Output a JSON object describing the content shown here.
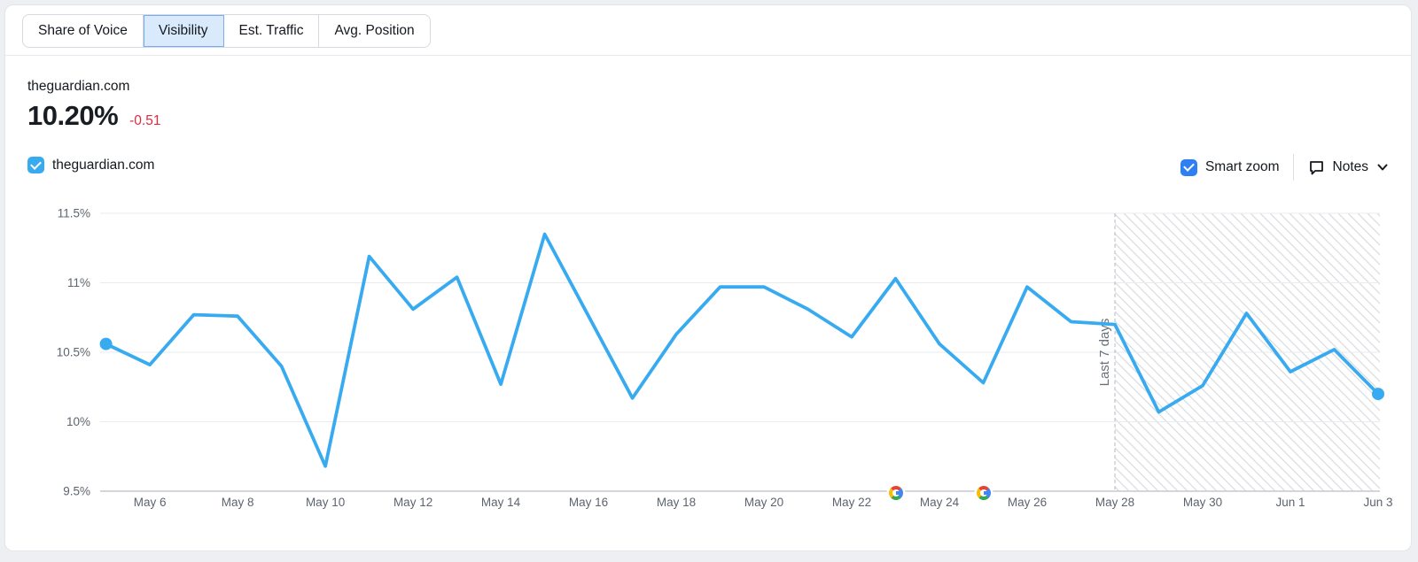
{
  "tabs": {
    "items": [
      {
        "label": "Share of Voice",
        "active": false
      },
      {
        "label": "Visibility",
        "active": true
      },
      {
        "label": "Est. Traffic",
        "active": false
      },
      {
        "label": "Avg. Position",
        "active": false
      }
    ]
  },
  "header": {
    "domain": "theguardian.com",
    "value": "10.20%",
    "change": "-0.51",
    "change_color": "#dd2b40"
  },
  "legend": {
    "series_label": "theguardian.com",
    "checked": true,
    "checkbox_color": "#38abf0"
  },
  "controls": {
    "smart_zoom_label": "Smart zoom",
    "smart_zoom_checked": true,
    "smart_zoom_checkbox_color": "#2e7ff2",
    "notes_label": "Notes"
  },
  "chart_data": {
    "type": "line",
    "x": [
      "May 5",
      "May 6",
      "May 7",
      "May 8",
      "May 9",
      "May 10",
      "May 11",
      "May 12",
      "May 13",
      "May 14",
      "May 15",
      "May 16",
      "May 17",
      "May 18",
      "May 19",
      "May 20",
      "May 21",
      "May 22",
      "May 23",
      "May 24",
      "May 25",
      "May 26",
      "May 27",
      "May 28",
      "May 29",
      "May 30",
      "May 31",
      "Jun 1",
      "Jun 2",
      "Jun 3"
    ],
    "series": [
      {
        "name": "theguardian.com",
        "color": "#38abf0",
        "values": [
          10.56,
          10.41,
          10.77,
          10.76,
          10.4,
          9.68,
          11.19,
          10.81,
          11.04,
          10.27,
          11.35,
          10.76,
          10.17,
          10.63,
          10.97,
          10.97,
          10.81,
          10.61,
          11.03,
          10.56,
          10.28,
          10.97,
          10.72,
          10.7,
          10.07,
          10.26,
          10.78,
          10.36,
          10.52,
          10.2
        ]
      }
    ],
    "ylim": [
      9.5,
      11.5
    ],
    "ytick_values": [
      11.5,
      11,
      10.5,
      10,
      9.5
    ],
    "ytick_labels": [
      "11.5%",
      "11%",
      "10.5%",
      "10%",
      "9.5%"
    ],
    "xtick_start_index": 1,
    "xtick_every": 2,
    "grid": "horizontal",
    "legend_position": "top-left",
    "forecast": {
      "label": "Last 7 days",
      "start_date": "May 28",
      "style": "hatched"
    },
    "google_update_dates": [
      "May 23",
      "May 25"
    ]
  }
}
